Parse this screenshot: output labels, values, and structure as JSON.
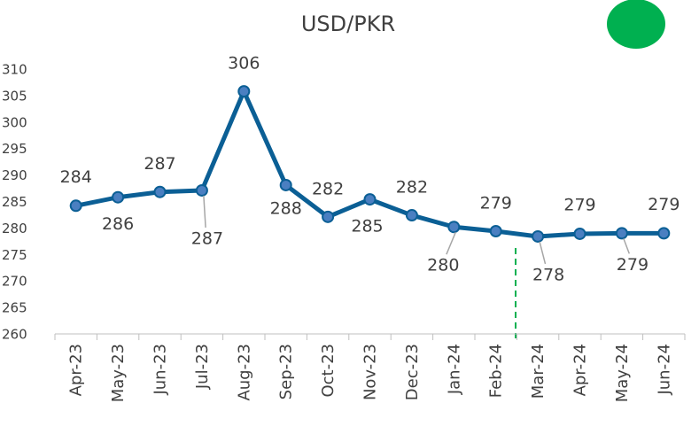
{
  "chart_data": {
    "type": "line",
    "title": "USD/PKR",
    "categories": [
      "Apr-23",
      "May-23",
      "Jun-23",
      "Jul-23",
      "Aug-23",
      "Sep-23",
      "Oct-23",
      "Nov-23",
      "Dec-23",
      "Jan-24",
      "Feb-24",
      "Mar-24",
      "Apr-24",
      "May-24",
      "Jun-24"
    ],
    "series": [
      {
        "name": "USD/PKR",
        "color": "#0b5f95",
        "values": [
          284.2,
          285.8,
          286.8,
          287.1,
          305.8,
          288.1,
          282.1,
          285.4,
          282.4,
          280.2,
          279.4,
          278.4,
          278.9,
          279.0,
          279.0
        ],
        "value_labels": [
          "284",
          "286",
          "287",
          "287",
          "306",
          "288",
          "282",
          "285",
          "282",
          "280",
          "279",
          "278",
          "279",
          "279",
          "279"
        ]
      }
    ],
    "ylim": [
      260,
      310
    ],
    "yticks": [
      260,
      265,
      270,
      275,
      280,
      285,
      290,
      295,
      300,
      305,
      310
    ]
  }
}
